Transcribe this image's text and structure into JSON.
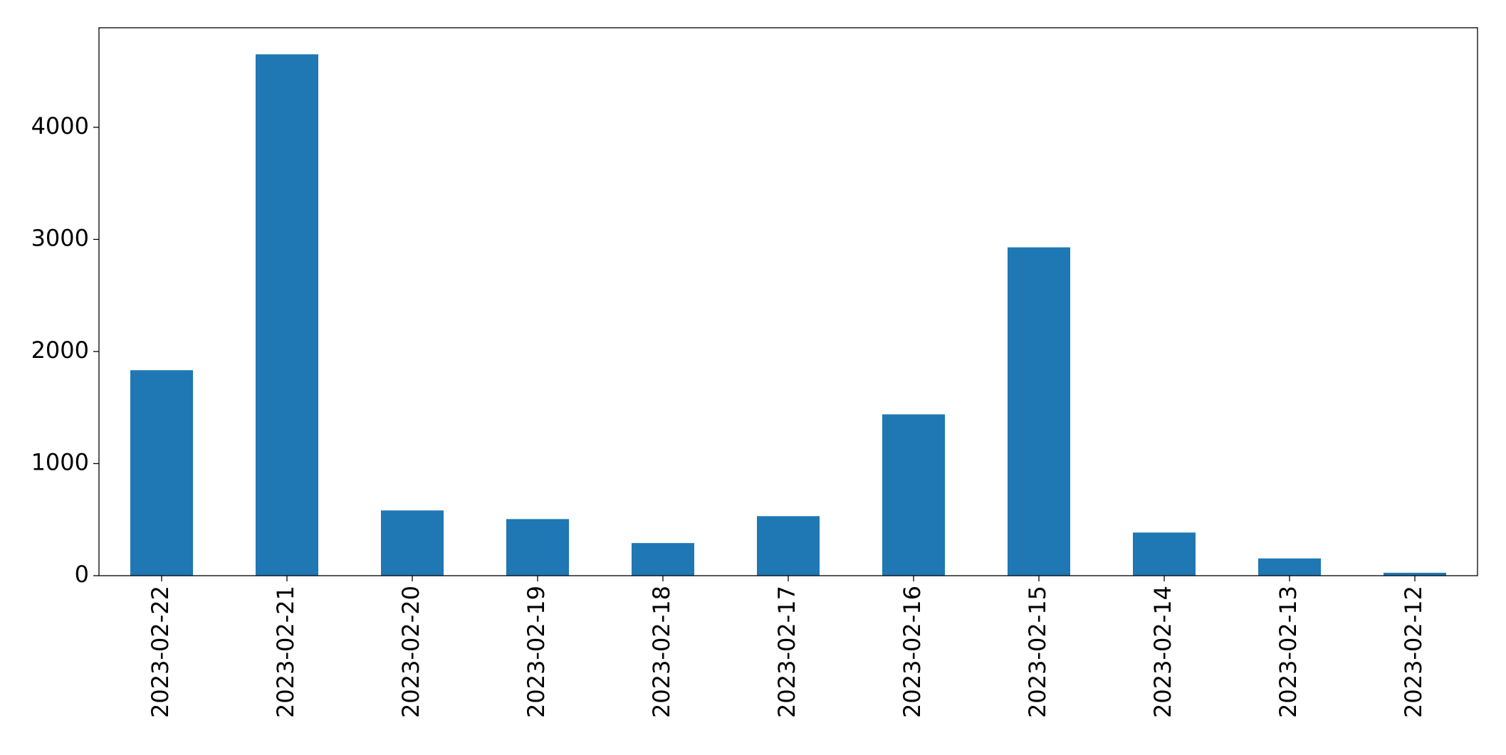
{
  "chart_data": {
    "type": "bar",
    "categories": [
      "2023-02-22",
      "2023-02-21",
      "2023-02-20",
      "2023-02-19",
      "2023-02-18",
      "2023-02-17",
      "2023-02-16",
      "2023-02-15",
      "2023-02-14",
      "2023-02-13",
      "2023-02-12"
    ],
    "values": [
      1833,
      4651,
      582,
      505,
      291,
      531,
      1439,
      2929,
      385,
      154,
      26
    ],
    "color": "#1f77b4",
    "ylim": [
      0,
      4888
    ],
    "yticks": [
      0,
      1000,
      2000,
      3000,
      4000
    ],
    "grid": false
  }
}
